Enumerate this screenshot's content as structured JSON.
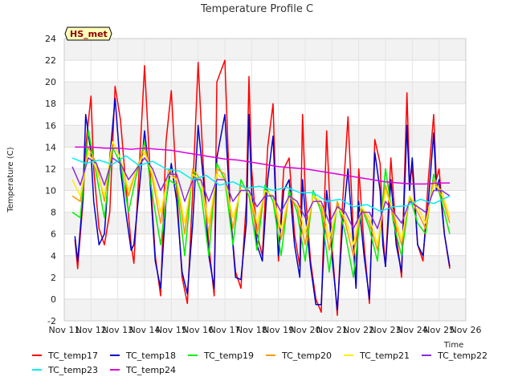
{
  "chart_data": {
    "type": "line",
    "title": "Temperature Profile C",
    "xlabel": "Time",
    "ylabel": "Temperature (C)",
    "badge": "HS_met",
    "ylim": [
      -2,
      24
    ],
    "yticks": [
      -2,
      0,
      2,
      4,
      6,
      8,
      10,
      12,
      14,
      16,
      18,
      20,
      22,
      24
    ],
    "xlim": [
      11,
      26
    ],
    "xticks": [
      11,
      12,
      13,
      14,
      15,
      16,
      17,
      18,
      19,
      20,
      21,
      22,
      23,
      24,
      25,
      26
    ],
    "xtick_labels": [
      "Nov 11",
      "Nov 12",
      "Nov 13",
      "Nov 14",
      "Nov 15",
      "Nov 16",
      "Nov 17",
      "Nov 18",
      "Nov 19",
      "Nov 20",
      "Nov 21",
      "Nov 22",
      "Nov 23",
      "Nov 24",
      "Nov 25",
      "Nov 26"
    ],
    "grid": true,
    "legend_placement": "bottom",
    "series": [
      {
        "name": "TC_temp17",
        "color": "#ff0000",
        "x": [
          11.4,
          11.5,
          11.7,
          11.8,
          12.0,
          12.1,
          12.3,
          12.5,
          12.7,
          12.9,
          13.1,
          13.3,
          13.5,
          13.6,
          13.8,
          14.0,
          14.2,
          14.4,
          14.6,
          14.8,
          15.0,
          15.2,
          15.4,
          15.6,
          15.8,
          16.0,
          16.2,
          16.4,
          16.6,
          16.7,
          17.0,
          17.2,
          17.4,
          17.6,
          17.8,
          17.9,
          18.0,
          18.2,
          18.4,
          18.6,
          18.8,
          18.9,
          19.0,
          19.2,
          19.4,
          19.6,
          19.8,
          19.9,
          20.0,
          20.2,
          20.4,
          20.6,
          20.8,
          20.9,
          21.0,
          21.2,
          21.4,
          21.6,
          21.8,
          21.9,
          22.0,
          22.2,
          22.4,
          22.6,
          22.8,
          22.9,
          23.0,
          23.2,
          23.4,
          23.6,
          23.8,
          23.9,
          24.0,
          24.2,
          24.4,
          24.6,
          24.8,
          24.9,
          25.0,
          25.2,
          25.4
        ],
        "values": [
          5.5,
          2.8,
          9.0,
          14.0,
          18.7,
          12.0,
          6.5,
          5.0,
          8.0,
          19.6,
          16.5,
          10.5,
          5.0,
          3.3,
          12.0,
          21.5,
          12.0,
          4.0,
          0.3,
          14.5,
          19.2,
          10.0,
          2.0,
          -0.4,
          10.0,
          21.8,
          12.0,
          5.0,
          0.3,
          20.0,
          22.0,
          8.0,
          2.5,
          1.0,
          9.0,
          20.5,
          12.0,
          6.0,
          4.0,
          14.0,
          18.0,
          10.0,
          3.5,
          12.0,
          13.0,
          6.0,
          3.0,
          17.0,
          10.0,
          3.5,
          0.0,
          -1.2,
          15.5,
          10.0,
          5.0,
          -1.5,
          9.0,
          16.8,
          6.0,
          1.0,
          12.0,
          5.0,
          -0.4,
          14.7,
          12.5,
          6.0,
          3.0,
          13.0,
          6.0,
          2.0,
          19.0,
          11.0,
          12.0,
          5.0,
          3.5,
          11.0,
          17.0,
          11.0,
          12.0,
          6.0,
          2.8
        ]
      },
      {
        "name": "TC_temp18",
        "color": "#0000cc",
        "x": [
          11.4,
          11.5,
          11.7,
          11.8,
          12.0,
          12.1,
          12.3,
          12.5,
          12.7,
          12.9,
          13.1,
          13.3,
          13.5,
          13.6,
          13.8,
          14.0,
          14.2,
          14.4,
          14.6,
          14.8,
          15.0,
          15.2,
          15.4,
          15.6,
          15.8,
          16.0,
          16.2,
          16.4,
          16.6,
          16.7,
          17.0,
          17.2,
          17.4,
          17.6,
          17.8,
          17.9,
          18.0,
          18.2,
          18.4,
          18.6,
          18.8,
          18.9,
          19.0,
          19.2,
          19.4,
          19.6,
          19.8,
          19.9,
          20.0,
          20.2,
          20.4,
          20.6,
          20.8,
          20.9,
          21.0,
          21.2,
          21.4,
          21.6,
          21.8,
          21.9,
          22.0,
          22.2,
          22.4,
          22.6,
          22.8,
          22.9,
          23.0,
          23.2,
          23.4,
          23.6,
          23.8,
          23.9,
          24.0,
          24.2,
          24.4,
          24.6,
          24.8,
          24.9,
          25.0,
          25.2,
          25.4
        ],
        "values": [
          5.8,
          3.5,
          9.5,
          17.0,
          13.5,
          9.0,
          5.0,
          6.0,
          13.0,
          18.5,
          12.0,
          8.0,
          4.5,
          5.0,
          10.0,
          15.5,
          11.0,
          3.5,
          1.0,
          9.0,
          12.5,
          9.0,
          2.5,
          0.5,
          7.0,
          16.0,
          11.0,
          4.0,
          1.0,
          13.0,
          17.0,
          8.0,
          2.0,
          1.8,
          7.0,
          17.0,
          10.0,
          5.0,
          3.5,
          11.0,
          15.0,
          9.0,
          4.0,
          10.0,
          11.0,
          5.0,
          2.0,
          11.0,
          8.0,
          3.0,
          -0.5,
          -0.5,
          10.0,
          8.0,
          4.0,
          -1.0,
          7.0,
          12.0,
          5.0,
          1.0,
          9.0,
          4.0,
          0.0,
          13.5,
          10.0,
          5.0,
          3.0,
          11.0,
          5.0,
          2.5,
          16.0,
          10.0,
          13.0,
          5.0,
          4.0,
          9.0,
          15.3,
          10.0,
          11.0,
          6.0,
          3.0
        ]
      },
      {
        "name": "TC_temp19",
        "color": "#00ee00",
        "x": [
          11.3,
          11.6,
          11.9,
          12.2,
          12.5,
          12.8,
          13.1,
          13.4,
          13.7,
          14.0,
          14.3,
          14.6,
          14.9,
          15.2,
          15.5,
          15.8,
          16.1,
          16.4,
          16.7,
          17.0,
          17.3,
          17.6,
          17.9,
          18.2,
          18.5,
          18.8,
          19.1,
          19.4,
          19.7,
          20.0,
          20.3,
          20.6,
          20.9,
          21.2,
          21.5,
          21.8,
          22.1,
          22.4,
          22.7,
          23.0,
          23.3,
          23.6,
          23.9,
          24.2,
          24.5,
          24.8,
          25.1,
          25.4
        ],
        "values": [
          8.0,
          7.5,
          15.5,
          11.5,
          7.5,
          14.0,
          12.5,
          8.0,
          11.5,
          14.5,
          9.5,
          5.0,
          11.0,
          10.5,
          4.0,
          12.0,
          10.0,
          4.0,
          12.5,
          11.0,
          5.0,
          11.0,
          9.5,
          4.5,
          10.5,
          9.0,
          4.0,
          10.0,
          8.0,
          3.5,
          10.0,
          8.0,
          2.5,
          9.0,
          6.0,
          2.0,
          8.5,
          6.5,
          3.5,
          12.0,
          7.0,
          4.0,
          9.5,
          7.0,
          6.0,
          11.5,
          9.0,
          6.0
        ]
      },
      {
        "name": "TC_temp20",
        "color": "#ff9900",
        "x": [
          11.3,
          11.6,
          11.9,
          12.2,
          12.5,
          12.8,
          13.1,
          13.4,
          13.7,
          14.0,
          14.3,
          14.6,
          14.9,
          15.2,
          15.5,
          15.8,
          16.1,
          16.4,
          16.7,
          17.0,
          17.3,
          17.6,
          17.9,
          18.2,
          18.5,
          18.8,
          19.1,
          19.4,
          19.7,
          20.0,
          20.3,
          20.6,
          20.9,
          21.2,
          21.5,
          21.8,
          22.1,
          22.4,
          22.7,
          23.0,
          23.3,
          23.6,
          23.9,
          24.2,
          24.5,
          24.8,
          25.1,
          25.4
        ],
        "values": [
          9.5,
          9.0,
          14.0,
          12.5,
          9.0,
          14.5,
          13.0,
          9.5,
          12.0,
          14.0,
          11.0,
          7.0,
          12.0,
          11.0,
          6.0,
          12.0,
          11.0,
          6.0,
          12.0,
          11.5,
          6.5,
          10.5,
          10.0,
          6.0,
          10.0,
          9.5,
          5.5,
          9.5,
          8.5,
          5.0,
          9.5,
          8.5,
          4.5,
          9.0,
          7.0,
          4.0,
          8.5,
          7.0,
          4.5,
          10.5,
          7.5,
          5.0,
          9.5,
          8.0,
          6.5,
          11.0,
          9.5,
          7.0
        ]
      },
      {
        "name": "TC_temp21",
        "color": "#ffee00",
        "x": [
          11.3,
          11.6,
          11.9,
          12.2,
          12.5,
          12.8,
          13.1,
          13.4,
          13.7,
          14.0,
          14.3,
          14.6,
          14.9,
          15.2,
          15.5,
          15.8,
          16.1,
          16.4,
          16.7,
          17.0,
          17.3,
          17.6,
          17.9,
          18.2,
          18.5,
          18.8,
          19.1,
          19.4,
          19.7,
          20.0,
          20.3,
          20.6,
          20.9,
          21.2,
          21.5,
          21.8,
          22.1,
          22.4,
          22.7,
          23.0,
          23.3,
          23.6,
          23.9,
          24.2,
          24.5,
          24.8,
          25.1,
          25.4
        ],
        "values": [
          11.0,
          9.5,
          13.5,
          12.0,
          9.5,
          14.5,
          13.0,
          10.0,
          12.0,
          13.5,
          11.5,
          8.0,
          11.5,
          11.0,
          7.0,
          11.5,
          11.0,
          7.0,
          11.5,
          11.0,
          7.5,
          10.0,
          10.0,
          7.0,
          10.0,
          9.5,
          6.5,
          9.5,
          9.0,
          6.0,
          9.5,
          9.0,
          5.5,
          8.5,
          7.5,
          5.0,
          8.5,
          7.5,
          5.0,
          10.0,
          8.0,
          5.5,
          9.5,
          8.5,
          7.0,
          10.5,
          10.0,
          7.5
        ]
      },
      {
        "name": "TC_temp22",
        "color": "#8a2be2",
        "x": [
          11.3,
          11.6,
          11.9,
          12.2,
          12.5,
          12.8,
          13.1,
          13.4,
          13.7,
          14.0,
          14.3,
          14.6,
          14.9,
          15.2,
          15.5,
          15.8,
          16.1,
          16.4,
          16.7,
          17.0,
          17.3,
          17.6,
          17.9,
          18.2,
          18.5,
          18.8,
          19.1,
          19.4,
          19.7,
          20.0,
          20.3,
          20.6,
          20.9,
          21.2,
          21.5,
          21.8,
          22.1,
          22.4,
          22.7,
          23.0,
          23.3,
          23.6,
          23.9,
          24.2,
          24.5,
          24.8,
          25.1,
          25.4
        ],
        "values": [
          12.2,
          10.5,
          13.0,
          12.5,
          10.5,
          13.0,
          12.5,
          11.0,
          12.0,
          13.0,
          12.0,
          10.0,
          11.5,
          11.5,
          9.0,
          11.0,
          11.0,
          9.0,
          11.0,
          11.0,
          9.0,
          10.0,
          10.0,
          8.5,
          9.5,
          9.5,
          8.0,
          9.5,
          9.0,
          7.5,
          9.0,
          9.0,
          7.0,
          8.5,
          8.0,
          6.5,
          8.0,
          8.0,
          6.5,
          9.0,
          8.0,
          7.0,
          9.0,
          8.5,
          8.0,
          10.0,
          10.0,
          9.5
        ]
      },
      {
        "name": "TC_temp23",
        "color": "#00eeee",
        "x": [
          11.3,
          11.8,
          12.3,
          12.8,
          13.3,
          13.8,
          14.3,
          14.8,
          15.3,
          15.8,
          16.3,
          16.8,
          17.3,
          17.8,
          18.3,
          18.8,
          19.3,
          19.8,
          20.3,
          20.8,
          21.3,
          21.8,
          22.3,
          22.8,
          23.3,
          23.8,
          24.3,
          24.8,
          25.4
        ],
        "values": [
          13.0,
          12.5,
          12.8,
          12.4,
          13.2,
          12.3,
          12.7,
          12.0,
          11.8,
          11.0,
          11.4,
          10.5,
          10.8,
          10.2,
          10.4,
          10.0,
          10.3,
          9.8,
          9.8,
          9.0,
          9.2,
          8.5,
          8.7,
          8.1,
          8.5,
          8.6,
          9.2,
          8.8,
          9.5
        ]
      },
      {
        "name": "TC_temp24",
        "color": "#dd00dd",
        "x": [
          11.4,
          12.0,
          12.5,
          13.0,
          13.5,
          14.0,
          14.5,
          15.0,
          15.5,
          16.0,
          16.5,
          17.0,
          17.5,
          18.0,
          18.5,
          19.0,
          19.5,
          20.0,
          20.5,
          21.0,
          21.5,
          22.0,
          22.5,
          23.0,
          23.5,
          24.0,
          24.5,
          25.0,
          25.4
        ],
        "values": [
          14.0,
          14.0,
          13.9,
          13.9,
          13.8,
          13.9,
          13.8,
          13.7,
          13.5,
          13.3,
          13.1,
          12.9,
          12.8,
          12.6,
          12.4,
          12.2,
          12.1,
          12.0,
          11.8,
          11.6,
          11.4,
          11.2,
          11.0,
          10.8,
          10.7,
          10.6,
          10.6,
          10.7,
          10.7
        ]
      }
    ]
  }
}
